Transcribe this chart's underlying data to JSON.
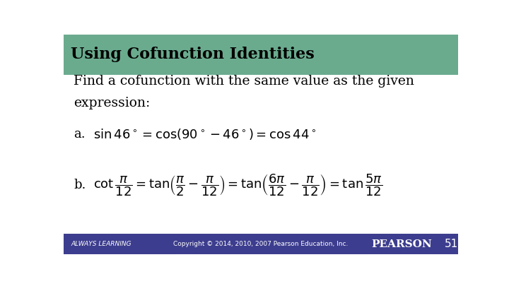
{
  "title": "Using Cofunction Identities",
  "title_bg_color": "#6aab8e",
  "title_text_color": "#000000",
  "body_bg_color": "#ffffff",
  "footer_bg_color": "#3d3d8f",
  "footer_text_color": "#ffffff",
  "footer_left": "ALWAYS LEARNING",
  "footer_center": "Copyright © 2014, 2010, 2007 Pearson Education, Inc.",
  "footer_right": "PEARSON",
  "page_number": "51",
  "intro_line1": "Find a cofunction with the same value as the given",
  "intro_line2": "expression:",
  "label_a": "a.",
  "label_b": "b.",
  "eq_a": "$\\sin 46^\\circ = \\cos(90^\\circ - 46^\\circ) = \\cos 44^\\circ$",
  "eq_b": "$\\cot\\dfrac{\\pi}{12} = \\tan\\!\\left(\\dfrac{\\pi}{2} - \\dfrac{\\pi}{12}\\right) = \\tan\\!\\left(\\dfrac{6\\pi}{12} - \\dfrac{\\pi}{12}\\right) = \\tan\\dfrac{5\\pi}{12}$"
}
